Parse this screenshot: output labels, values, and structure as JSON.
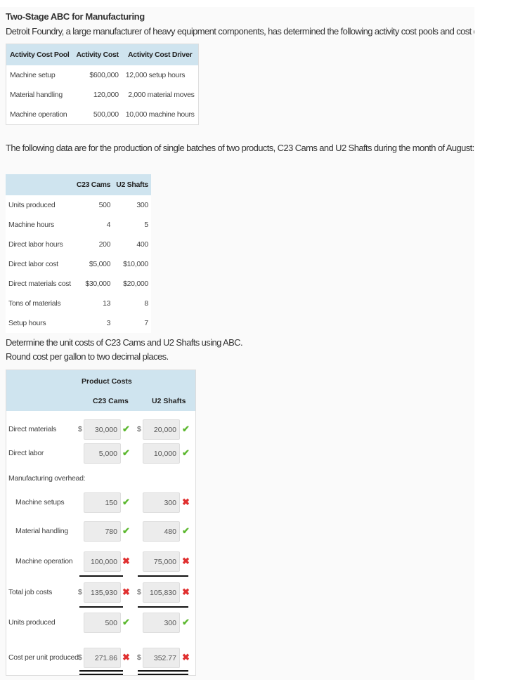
{
  "title": "Two-Stage ABC for Manufacturing",
  "intro": "Detroit Foundry, a large manufacturer of heavy equipment components, has determined the following activity cost pools and cost driver levels for the year",
  "activity_table": {
    "headers": [
      "Activity Cost Pool",
      "Activity Cost",
      "Activity Cost Driver"
    ],
    "rows": [
      [
        "Machine setup",
        "$600,000",
        "12,000 setup hours"
      ],
      [
        "Material handling",
        "120,000",
        "2,000 material moves"
      ],
      [
        "Machine operation",
        "500,000",
        "10,000 machine hours"
      ]
    ]
  },
  "production_intro": "The following data are for the production of single batches of two products, C23 Cams and U2 Shafts during the month of August:",
  "production_table": {
    "headers": [
      "",
      "C23 Cams",
      "U2 Shafts"
    ],
    "rows": [
      [
        "Units produced",
        "500",
        "300"
      ],
      [
        "Machine hours",
        "4",
        "5"
      ],
      [
        "Direct labor hours",
        "200",
        "400"
      ],
      [
        "Direct labor cost",
        "$5,000",
        "$10,000"
      ],
      [
        "Direct materials cost",
        "$30,000",
        "$20,000"
      ],
      [
        "Tons of materials",
        "13",
        "8"
      ],
      [
        "Setup hours",
        "3",
        "7"
      ]
    ]
  },
  "instruction1": "Determine the unit costs of C23 Cams and U2 Shafts using ABC.",
  "instruction2": "Round cost per gallon to two decimal places.",
  "product_costs": {
    "title": "Product Costs",
    "col1": "C23 Cams",
    "col2": "U2 Shafts",
    "dollar": "$",
    "overhead_label": "Manufacturing overhead:",
    "rows": [
      {
        "label": "Direct materials",
        "c23": "30,000",
        "c23_status": "correct",
        "u2": "20,000",
        "u2_status": "correct"
      },
      {
        "label": "Direct labor",
        "c23": "5,000",
        "c23_status": "correct",
        "u2": "10,000",
        "u2_status": "correct"
      },
      {
        "label": "Machine setups",
        "c23": "150",
        "c23_status": "correct",
        "u2": "300",
        "u2_status": "incorrect"
      },
      {
        "label": "Material handling",
        "c23": "780",
        "c23_status": "correct",
        "u2": "480",
        "u2_status": "correct"
      },
      {
        "label": "Machine operation",
        "c23": "100,000",
        "c23_status": "incorrect",
        "u2": "75,000",
        "u2_status": "incorrect"
      },
      {
        "label": "Total job costs",
        "c23": "135,930",
        "c23_status": "incorrect",
        "u2": "105,830",
        "u2_status": "incorrect"
      },
      {
        "label": "Units produced",
        "c23": "500",
        "c23_status": "correct",
        "u2": "300",
        "u2_status": "correct"
      },
      {
        "label": "Cost per unit produced",
        "c23": "271.86",
        "c23_status": "incorrect",
        "u2": "352.77",
        "u2_status": "incorrect"
      }
    ]
  },
  "colors": {
    "header_bg": "#cfe4ef",
    "correct": "#5cb82f",
    "incorrect": "#e03030"
  },
  "icons": {
    "correct": "check-icon",
    "incorrect": "x-icon"
  }
}
